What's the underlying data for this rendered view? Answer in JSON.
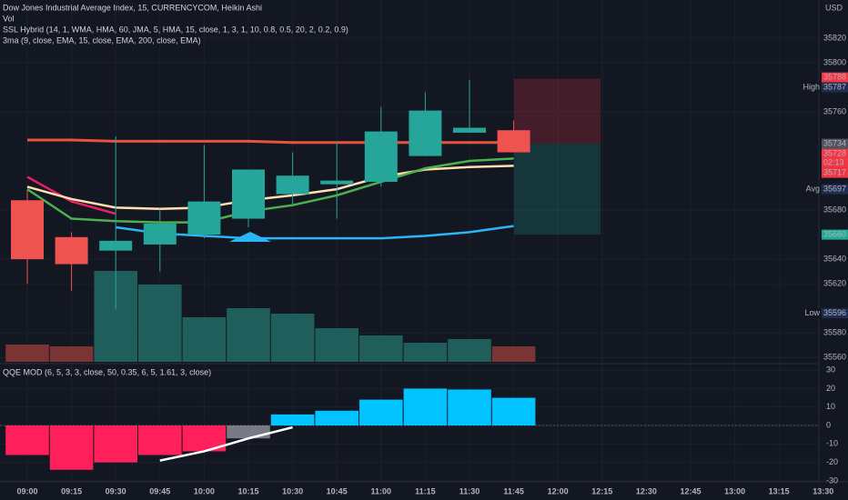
{
  "header": {
    "title": "Dow Jones Industrial Average Index, 15, CURRENCYCOM, Heikin Ashi",
    "vol": "Vol",
    "ssl": "SSL Hybrid (14, 1, WMA, HMA, 60, JMA, 5, HMA, 15, close, 1, 3, 1, 10, 0.8, 0.5, 20, 2, 0.2, 0.9)",
    "ma3": "3ma (9, close, EMA, 15, close, EMA, 200, close, EMA)",
    "qqe": "QQE MOD (6, 5, 3, 3, close, 50, 0.35, 6, 5, 1.61, 3, close)",
    "currency": "USD"
  },
  "time_axis": [
    "09:00",
    "09:15",
    "09:30",
    "09:45",
    "10:00",
    "10:15",
    "10:30",
    "10:45",
    "11:00",
    "11:15",
    "11:30",
    "11:45",
    "12:00",
    "12:15",
    "12:30",
    "12:45",
    "13:00",
    "13:15",
    "13:30"
  ],
  "chart_data": [
    {
      "type": "candlestick",
      "x": [
        "09:00",
        "09:15",
        "09:30",
        "09:45",
        "10:00",
        "10:15",
        "10:30",
        "10:45",
        "11:00",
        "11:15",
        "11:30",
        "11:45"
      ],
      "open": [
        35688,
        35658,
        35647,
        35652,
        35660,
        35673,
        35693,
        35701,
        35703,
        35724,
        35743,
        35745
      ],
      "high": [
        35696,
        35662,
        35740,
        35681,
        35733,
        35713,
        35727,
        35736,
        35764,
        35776,
        35786,
        35753
      ],
      "low": [
        35620,
        35614,
        35599,
        35630,
        35657,
        35666,
        35684,
        35673,
        35699,
        35724,
        35743,
        35727
      ],
      "close": [
        35640,
        35636,
        35655,
        35669,
        35687,
        35713,
        35708,
        35704,
        35744,
        35761,
        35747,
        35727
      ],
      "up_color": "#26a69a",
      "down_color": "#ef5350",
      "ylim": [
        35555,
        35851
      ],
      "yticks": [
        35560,
        35580,
        35620,
        35640,
        35680,
        35760,
        35800,
        35820
      ],
      "lines": [
        {
          "color": "#e8533f",
          "values": [
            35737,
            35737,
            35736,
            35736,
            35736,
            35736,
            35735,
            35735,
            35735,
            35735,
            35735,
            35735
          ]
        },
        {
          "color": "#e91e63",
          "values": [
            35707,
            35687,
            35677,
            null,
            null,
            null,
            null,
            null,
            null,
            null,
            null,
            null
          ]
        },
        {
          "color": "#ffe0b2",
          "values": [
            35699,
            35689,
            35682,
            35681,
            35682,
            35688,
            35692,
            35697,
            35707,
            35713,
            35715,
            35716
          ]
        },
        {
          "color": "#4caf50",
          "values": [
            35697,
            35673,
            35671,
            35670,
            35670,
            35679,
            35684,
            35692,
            35703,
            35714,
            35720,
            35722
          ]
        },
        {
          "color": "#29b6f6",
          "values": [
            null,
            null,
            35666,
            35661,
            35659,
            35657,
            35657,
            35657,
            35657,
            35659,
            35662,
            35667
          ]
        }
      ],
      "position": {
        "target": 35787,
        "entry": 35734,
        "stop": 35660
      },
      "price_labels": [
        {
          "value": 35788,
          "color": "#f23645"
        },
        {
          "value": 35734,
          "color": "#50535e"
        },
        {
          "value": 35728,
          "color": "#f23645",
          "note": "02:13"
        },
        {
          "value": 35717,
          "color": "#f23645"
        },
        {
          "value": 35660,
          "color": "#22ab94"
        }
      ],
      "markers": [
        {
          "name": "High",
          "value": 35787
        },
        {
          "name": "Avg",
          "value": 35697
        },
        {
          "name": "Low",
          "value": 35596
        }
      ]
    },
    {
      "type": "volume",
      "values": [
        19,
        17,
        100,
        85,
        49,
        59,
        53,
        37,
        29,
        21,
        25,
        17
      ],
      "colors": [
        "#7a3434",
        "#7a3434",
        "#1f5e5a",
        "#1f5e5a",
        "#1f5e5a",
        "#1f5e5a",
        "#1f5e5a",
        "#1f5e5a",
        "#1f5e5a",
        "#1f5e5a",
        "#1f5e5a",
        "#7a3434"
      ]
    },
    {
      "type": "qqe",
      "values": [
        -16,
        -24,
        -20,
        -16,
        -14,
        -7,
        6,
        8,
        14,
        20,
        19.5,
        15
      ],
      "colors": [
        "#ff1f5a",
        "#ff1f5a",
        "#ff1f5a",
        "#ff1f5a",
        "#ff1f5a",
        "#787b86",
        "#00c3ff",
        "#00c3ff",
        "#00c3ff",
        "#00c3ff",
        "#00c3ff",
        "#00c3ff"
      ],
      "line": [
        null,
        null,
        null,
        -19,
        -14,
        -7,
        -1,
        null,
        null,
        null,
        null,
        null
      ],
      "line_color": "#ffffff",
      "ylim": [
        -31.5,
        33.5
      ],
      "yticks": [
        30,
        20,
        10,
        0,
        -10,
        -20,
        -30
      ]
    }
  ]
}
